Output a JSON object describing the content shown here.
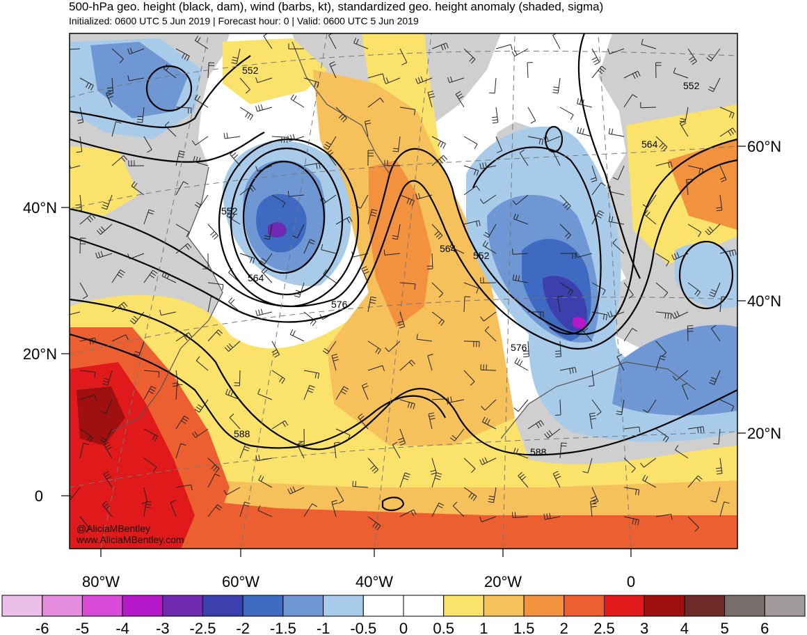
{
  "header": {
    "title": "500-hPa geo. height (black, dam), wind (barbs, kt), standardized geo. height anomaly (shaded, sigma)",
    "subtitle": "Initialized: 0600 UTC 5 Jun 2019 | Forecast hour: 0 | Valid: 0600 UTC 5 Jun 2019"
  },
  "map": {
    "lat_labels_left": [
      "40°N",
      "20°N",
      "0"
    ],
    "lat_labels_right": [
      "60°N",
      "40°N",
      "20°N"
    ],
    "lon_labels": [
      "80°W",
      "60°W",
      "40°W",
      "20°W",
      "0"
    ],
    "contour_labels": [
      "552",
      "552",
      "564",
      "576",
      "564",
      "552",
      "576",
      "588",
      "588",
      "552",
      "564"
    ],
    "watermark": [
      "@AliciaMBentley",
      "www.AliciaMBentley.com"
    ],
    "colors": {
      "land": "#cfcfcf",
      "ocean": "#ffffff",
      "contour": "#000000",
      "coast": "#555555"
    }
  },
  "colorbar": {
    "labels": [
      "-6",
      "-5",
      "-4",
      "-3",
      "-2.5",
      "-2",
      "-1.5",
      "-1",
      "-0.5",
      "0",
      "0.5",
      "1",
      "1.5",
      "2",
      "2.5",
      "3",
      "4",
      "5",
      "6"
    ],
    "colors": [
      "#ebbfe8",
      "#e58be0",
      "#d94ad8",
      "#b518c8",
      "#6e2ab0",
      "#3c3fae",
      "#3e6ac2",
      "#6f97d4",
      "#a9cbea",
      "#ffffff",
      "#ffffff",
      "#fbe26a",
      "#f6c05a",
      "#f2923e",
      "#ec5f30",
      "#e01a1a",
      "#a01010",
      "#6e2a28",
      "#7a6e6c",
      "#a09a9a"
    ]
  }
}
